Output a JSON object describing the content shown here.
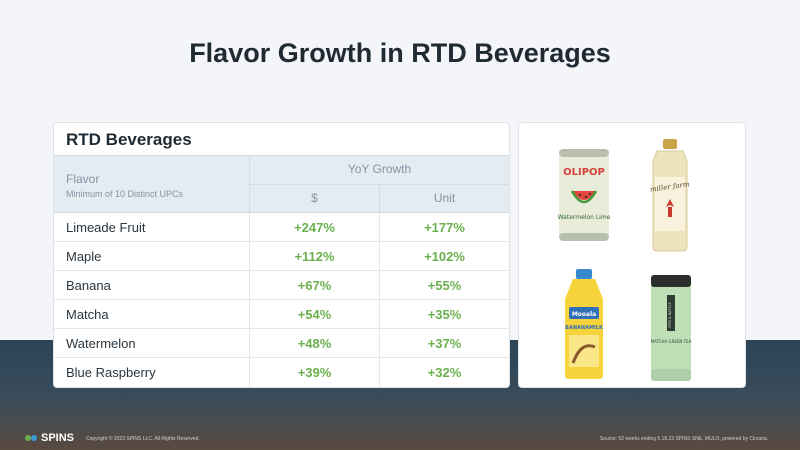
{
  "title": "Flavor Growth in RTD Beverages",
  "table": {
    "title": "RTD Beverages",
    "flavor_header": "Flavor",
    "flavor_subheader": "Minimum of 10 Distinct UPCs",
    "growth_header": "YoY Growth",
    "dollar_header": "$",
    "unit_header": "Unit",
    "rows": [
      {
        "flavor": "Limeade Fruit",
        "dollar": "+247%",
        "unit": "+177%"
      },
      {
        "flavor": "Maple",
        "dollar": "+112%",
        "unit": "+102%"
      },
      {
        "flavor": "Banana",
        "dollar": "+67%",
        "unit": "+55%"
      },
      {
        "flavor": "Matcha",
        "dollar": "+54%",
        "unit": "+35%"
      },
      {
        "flavor": "Watermelon",
        "dollar": "+48%",
        "unit": "+37%"
      },
      {
        "flavor": "Blue Raspberry",
        "dollar": "+39%",
        "unit": "+32%"
      }
    ]
  },
  "products": {
    "olipop_brand": "OLIPOP",
    "olipop_flavor": "Watermelon Lime",
    "maple_brand": "miller farm",
    "banana_brand": "Mooala",
    "banana_flavor": "BANANAMILK",
    "matcha_brand": "PIPS & BATTLE",
    "matcha_flavor": "MATCHA GREEN TEA"
  },
  "footer": {
    "logo": "SPINS",
    "copyright": "Copyright © 2023 SPINS LLC. All Rights Reserved.",
    "source": "Source: 52 weeks ending 5.18.23 SPINS SNE, MULO, powered by Circana."
  },
  "colors": {
    "growth_green": "#6bb04e",
    "header_bg": "#e4ebf1",
    "band_dark": "#2c4456"
  }
}
